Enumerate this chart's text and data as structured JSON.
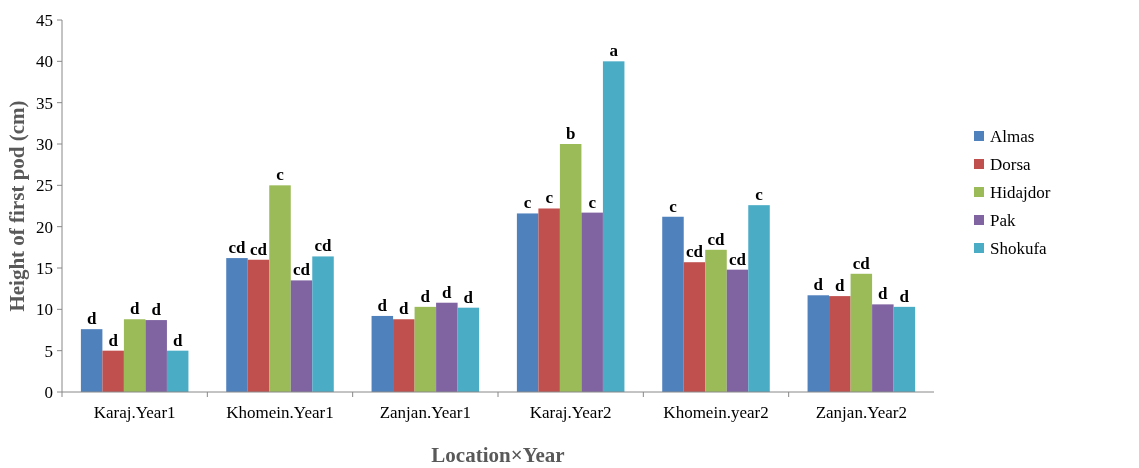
{
  "chart_data": {
    "type": "bar",
    "xlabel": "Location×Year",
    "ylabel": "Height of first pod (cm)",
    "categories": [
      "Karaj.Year1",
      "Khomein.Year1",
      "Zanjan.Year1",
      "Karaj.Year2",
      "Khomein.year2",
      "Zanjan.Year2"
    ],
    "series": [
      {
        "name": "Almas",
        "color": "#4f81bd",
        "values": [
          7.6,
          16.2,
          9.2,
          21.6,
          21.2,
          11.7
        ],
        "value_labels": [
          "d",
          "cd",
          "d",
          "c",
          "c",
          "d"
        ]
      },
      {
        "name": "Dorsa",
        "color": "#c0504d",
        "values": [
          5.0,
          16.0,
          8.8,
          22.2,
          15.7,
          11.6
        ],
        "value_labels": [
          "d",
          "cd",
          "d",
          "c",
          "cd",
          "d"
        ]
      },
      {
        "name": "Hidajdor",
        "color": "#9bbb59",
        "values": [
          8.8,
          25.0,
          10.3,
          30.0,
          17.2,
          14.3
        ],
        "value_labels": [
          "d",
          "c",
          "d",
          "b",
          "cd",
          "cd"
        ]
      },
      {
        "name": "Pak",
        "color": "#8064a2",
        "values": [
          8.7,
          13.5,
          10.8,
          21.7,
          14.8,
          10.6
        ],
        "value_labels": [
          "d",
          "cd",
          "d",
          "c",
          "cd",
          "d"
        ]
      },
      {
        "name": "Shokufa",
        "color": "#4bacc6",
        "values": [
          5.0,
          16.4,
          10.2,
          40.0,
          22.6,
          10.3
        ],
        "value_labels": [
          "d",
          "cd",
          "d",
          "a",
          "c",
          "d"
        ]
      }
    ],
    "ylim": [
      0,
      45
    ],
    "yticks": [
      0,
      5,
      10,
      15,
      20,
      25,
      30,
      35,
      40,
      45
    ],
    "grid": false,
    "legend": "right"
  }
}
